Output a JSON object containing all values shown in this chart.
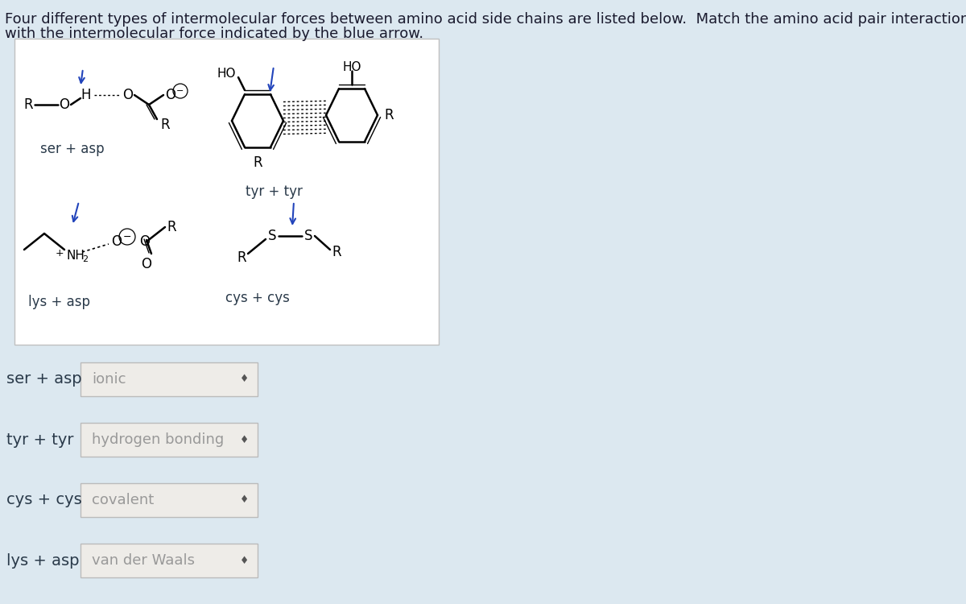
{
  "bg_color": "#dce8f0",
  "title_line1": "Four different types of intermolecular forces between amino acid side chains are listed below.  Match the amino acid pair interaction",
  "title_line2": "with the intermolecular force indicated by the blue arrow.",
  "title_fontsize": 13,
  "title_color": "#1a1a2e",
  "diagram_bg": "#ffffff",
  "rows": [
    {
      "label": "ser + asp",
      "answer": "ionic"
    },
    {
      "label": "tyr + tyr",
      "answer": "hydrogen bonding"
    },
    {
      "label": "cys + cys",
      "answer": "covalent"
    },
    {
      "label": "lys + asp",
      "answer": "van der Waals"
    }
  ],
  "label_fontsize": 14,
  "answer_fontsize": 13,
  "label_color": "#2a3a4a",
  "answer_color": "#999999",
  "box_facecolor": "#eeece8",
  "box_edgecolor": "#bbbbbb",
  "arrow_color": "#2244bb"
}
